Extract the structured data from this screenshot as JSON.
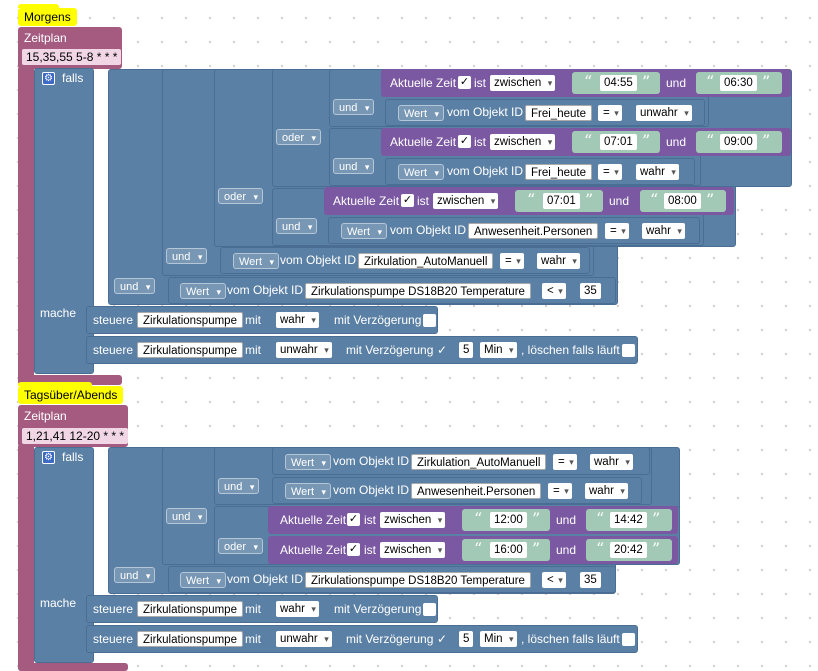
{
  "morgens": {
    "label": "Morgens",
    "zeitplan": "Zeitplan",
    "cron": "15,35,55 5-8 * * *",
    "falls": "falls",
    "mache": "mache",
    "cond_a_op": "und",
    "cond_a1": {
      "title": "Aktuelle Zeit",
      "ist": "ist",
      "mode": "zwischen",
      "from": "04:55",
      "und": "und",
      "to": "06:30"
    },
    "cond_a2": {
      "wert": "Wert",
      "vom": "vom Objekt ID",
      "obj": "Frei_heute",
      "eq": "=",
      "val": "unwahr"
    },
    "oder_inner": "oder",
    "cond_b_op": "und",
    "cond_b1": {
      "title": "Aktuelle Zeit",
      "ist": "ist",
      "mode": "zwischen",
      "from": "07:01",
      "und": "und",
      "to": "09:00"
    },
    "cond_b2": {
      "wert": "Wert",
      "vom": "vom Objekt ID",
      "obj": "Frei_heute",
      "eq": "=",
      "val": "wahr"
    },
    "oder_outer": "oder",
    "cond_c_op": "und",
    "cond_c1": {
      "title": "Aktuelle Zeit",
      "ist": "ist",
      "mode": "zwischen",
      "from": "07:01",
      "und": "und",
      "to": "08:00"
    },
    "cond_c2": {
      "wert": "Wert",
      "vom": "vom Objekt ID",
      "obj": "Anwesenheit.Personen",
      "eq": "=",
      "val": "wahr"
    },
    "cond_d_op": "und",
    "cond_d": {
      "wert": "Wert",
      "vom": "vom Objekt ID",
      "obj": "Zirkulation_AutoManuell",
      "eq": "=",
      "val": "wahr"
    },
    "cond_e_op": "und",
    "cond_e": {
      "wert": "Wert",
      "vom": "vom Objekt ID",
      "obj": "Zirkulationspumpe DS18B20  Temperature",
      "cmp": "<",
      "num": "35"
    },
    "act1": {
      "steuere": "steuere",
      "dev": "Zirkulationspumpe",
      "mit": "mit",
      "val": "wahr",
      "delay": "mit Verzögerung"
    },
    "act2": {
      "steuere": "steuere",
      "dev": "Zirkulationspumpe",
      "mit": "mit",
      "val": "unwahr",
      "delay": "mit Verzögerung",
      "check": "✓",
      "n": "5",
      "unit": "Min",
      "clear": ", löschen falls läuft"
    }
  },
  "tags": {
    "label": "Tagsüber/Abends",
    "zeitplan": "Zeitplan",
    "cron": "1,21,41 12-20 * * *",
    "falls": "falls",
    "mache": "mache",
    "c1": {
      "wert": "Wert",
      "vom": "vom Objekt ID",
      "obj": "Zirkulation_AutoManuell",
      "eq": "=",
      "val": "wahr"
    },
    "und_a": "und",
    "c2": {
      "wert": "Wert",
      "vom": "vom Objekt ID",
      "obj": "Anwesenheit.Personen",
      "eq": "=",
      "val": "wahr"
    },
    "und_b": "und",
    "c3": {
      "title": "Aktuelle Zeit",
      "ist": "ist",
      "mode": "zwischen",
      "from": "12:00",
      "und": "und",
      "to": "14:42"
    },
    "oder": "oder",
    "c4": {
      "title": "Aktuelle Zeit",
      "ist": "ist",
      "mode": "zwischen",
      "from": "16:00",
      "und": "und",
      "to": "20:42"
    },
    "und_c": "und",
    "c5": {
      "wert": "Wert",
      "vom": "vom Objekt ID",
      "obj": "Zirkulationspumpe DS18B20  Temperature",
      "cmp": "<",
      "num": "35"
    },
    "act1": {
      "steuere": "steuere",
      "dev": "Zirkulationspumpe",
      "mit": "mit",
      "val": "wahr",
      "delay": "mit Verzögerung"
    },
    "act2": {
      "steuere": "steuere",
      "dev": "Zirkulationspumpe",
      "mit": "mit",
      "val": "unwahr",
      "delay": "mit Verzögerung",
      "check": "✓",
      "n": "5",
      "unit": "Min",
      "clear": ", löschen falls läuft"
    }
  },
  "icons": {
    "gear": "gear-icon",
    "checkbox": "checkbox-icon",
    "quote": "quote-icon"
  },
  "colors": {
    "schedule": "#a55b80",
    "control": "#5b80a5",
    "time": "#7b58a2",
    "text": "#a2c9b6",
    "comment": "#ffff00"
  }
}
